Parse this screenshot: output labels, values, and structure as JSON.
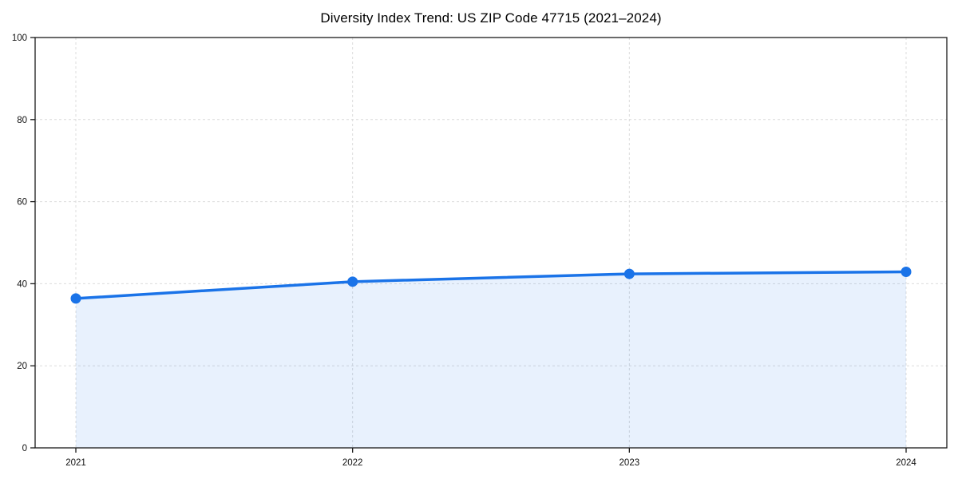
{
  "page": {
    "background": "#ffffff"
  },
  "chart_data": {
    "type": "area",
    "title": "Diversity Index Trend: US ZIP Code 47715 (2021–2024)",
    "categories": [
      "2021",
      "2022",
      "2023",
      "2024"
    ],
    "series": [
      {
        "name": "Diversity Index",
        "values": [
          36.4,
          40.5,
          42.4,
          42.9
        ]
      }
    ],
    "xlabel": "",
    "ylabel": "",
    "ylim": [
      0,
      100
    ],
    "yticks": [
      0,
      20,
      40,
      60,
      80,
      100
    ],
    "grid": "dashed-both-axes",
    "legend": "none",
    "line_color": "#1a73e8",
    "fill_color": "rgba(26,115,232,0.10)",
    "marker_color": "#1a73e8",
    "spine_color": "#1a1a1a"
  }
}
